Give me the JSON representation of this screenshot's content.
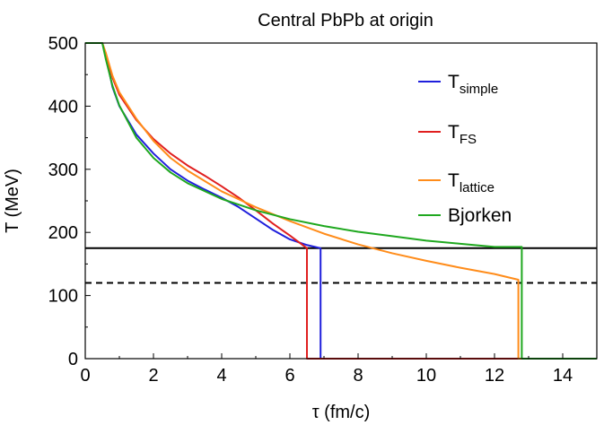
{
  "chart_data": {
    "type": "line",
    "title": "Central PbPb at origin",
    "xlabel": "τ (fm/c)",
    "ylabel": "T (MeV)",
    "xlim": [
      0,
      15
    ],
    "ylim": [
      0,
      500
    ],
    "xticks": [
      0,
      2,
      4,
      6,
      8,
      10,
      12,
      14
    ],
    "yticks": [
      0,
      100,
      200,
      300,
      400,
      500
    ],
    "xtick_labels": [
      "0",
      "2",
      "4",
      "6",
      "8",
      "10",
      "12",
      "14"
    ],
    "ytick_labels": [
      "0",
      "100",
      "200",
      "300",
      "400",
      "500"
    ],
    "grid": false,
    "legend_position": "top-right",
    "reference_lines": [
      {
        "style": "solid",
        "color": "#000000",
        "y": 175
      },
      {
        "style": "dashed",
        "color": "#000000",
        "y": 120
      }
    ],
    "series": [
      {
        "name": "T_simple",
        "label_main": "T",
        "label_sub": "simple",
        "color": "#1f1fdc",
        "x": [
          0,
          0.5,
          0.6,
          0.8,
          1.0,
          1.5,
          2.0,
          2.5,
          3.0,
          3.5,
          4.0,
          4.5,
          5.0,
          5.5,
          6.0,
          6.5,
          6.9,
          6.9,
          7.0,
          15
        ],
        "y": [
          500,
          500,
          480,
          430,
          400,
          355,
          325,
          300,
          282,
          268,
          255,
          240,
          222,
          204,
          189,
          180,
          175,
          0,
          0,
          0
        ]
      },
      {
        "name": "T_FS",
        "label_main": "T",
        "label_sub": "FS",
        "color": "#e01f1f",
        "x": [
          0,
          0.5,
          0.6,
          0.8,
          1.0,
          1.5,
          2.0,
          2.5,
          3.0,
          3.5,
          4.0,
          4.5,
          5.0,
          5.5,
          6.0,
          6.5,
          6.5,
          15
        ],
        "y": [
          500,
          500,
          483,
          445,
          418,
          378,
          348,
          325,
          306,
          290,
          273,
          255,
          235,
          214,
          195,
          175,
          0,
          0
        ]
      },
      {
        "name": "T_lattice",
        "label_main": "T",
        "label_sub": "lattice",
        "color": "#ff8c1a",
        "x": [
          0,
          0.5,
          0.6,
          0.8,
          1.0,
          1.5,
          2.0,
          2.5,
          3.0,
          4.0,
          5.0,
          6.0,
          7.0,
          8.0,
          9.0,
          10.0,
          11.0,
          12.0,
          12.7,
          12.7,
          15
        ],
        "y": [
          500,
          500,
          485,
          448,
          422,
          380,
          345,
          318,
          298,
          265,
          240,
          218,
          198,
          181,
          167,
          155,
          144,
          134,
          125,
          0,
          0
        ]
      },
      {
        "name": "Bjorken",
        "label_main": "Bjorken",
        "label_sub": "",
        "color": "#1fa81f",
        "x": [
          0,
          0.5,
          0.6,
          0.8,
          1.0,
          1.5,
          2.0,
          2.5,
          3.0,
          4.0,
          5.0,
          6.0,
          7.0,
          8.0,
          9.0,
          10.0,
          11.0,
          12.0,
          12.8,
          12.8,
          15
        ],
        "y": [
          500,
          500,
          475,
          432,
          401,
          350,
          318,
          295,
          278,
          253,
          235,
          221,
          210,
          201,
          194,
          187,
          182,
          177,
          177,
          0,
          0
        ]
      }
    ]
  }
}
